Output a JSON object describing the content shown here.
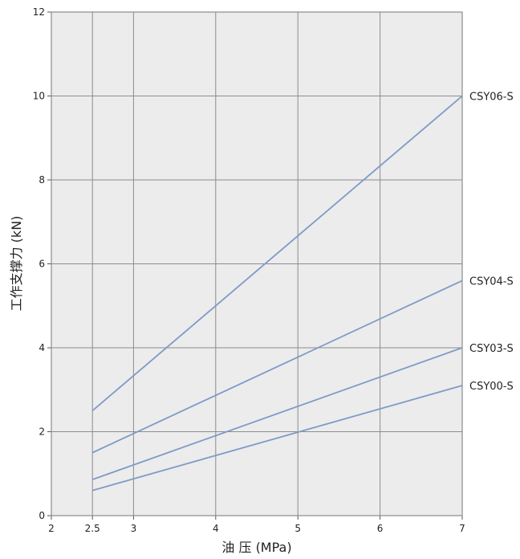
{
  "chart_data": {
    "type": "line",
    "xlabel": "油 压 (MPa)",
    "ylabel": "工作支撑力 (kN)",
    "xlim": [
      2,
      7
    ],
    "ylim": [
      0,
      12
    ],
    "x_ticks": [
      2,
      2.5,
      3,
      4,
      5,
      6,
      7
    ],
    "x_tick_labels": [
      "2",
      "2.5",
      "3",
      "4",
      "5",
      "6",
      "7"
    ],
    "y_ticks": [
      0,
      2,
      4,
      6,
      8,
      10,
      12
    ],
    "y_tick_labels": [
      "0",
      "2",
      "4",
      "6",
      "8",
      "10",
      "12"
    ],
    "grid": true,
    "legend": "direct labels at right end of lines",
    "colors": {
      "plot_bg": "#ececec",
      "line": "#7f9ac8",
      "grid": "#8c8c8c"
    },
    "series": [
      {
        "name": "CSY06-S",
        "x": [
          2.5,
          7
        ],
        "values": [
          2.5,
          10.0
        ]
      },
      {
        "name": "CSY04-S",
        "x": [
          2.5,
          7
        ],
        "values": [
          1.5,
          5.6
        ]
      },
      {
        "name": "CSY03-S",
        "x": [
          2.5,
          7
        ],
        "values": [
          0.86,
          4.0
        ]
      },
      {
        "name": "CSY00-S",
        "x": [
          2.5,
          7
        ],
        "values": [
          0.6,
          3.1
        ]
      }
    ]
  }
}
